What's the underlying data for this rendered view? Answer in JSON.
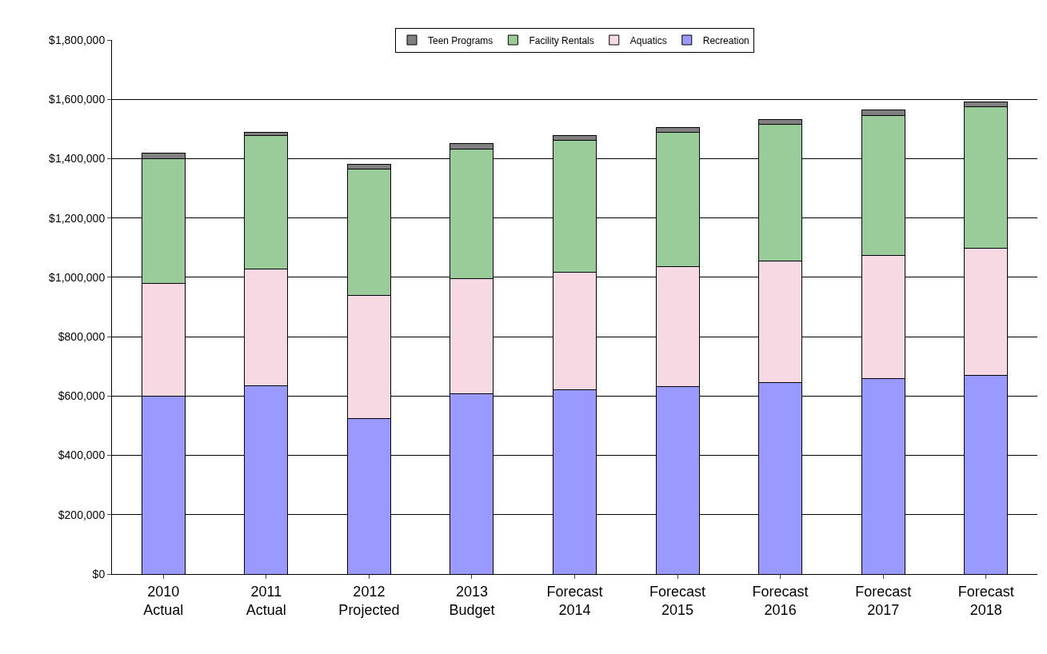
{
  "chart_data": {
    "type": "bar",
    "stacked": true,
    "categories": [
      "2010\nActual",
      "2011\nActual",
      "2012\nProjected",
      "2013\nBudget",
      "Forecast\n2014",
      "Forecast\n2015",
      "Forecast\n2016",
      "Forecast\n2017",
      "Forecast\n2018"
    ],
    "series": [
      {
        "name": "Recreation",
        "color": "#9999ff",
        "values": [
          600000,
          635000,
          525000,
          608000,
          620000,
          632000,
          645000,
          658000,
          670000
        ]
      },
      {
        "name": "Aquatics",
        "color": "#f7d9e3",
        "values": [
          380000,
          393000,
          415000,
          387000,
          398000,
          405000,
          410000,
          417000,
          428000
        ]
      },
      {
        "name": "Facility Rentals",
        "color": "#99cc99",
        "values": [
          420000,
          450000,
          425000,
          437000,
          444000,
          453000,
          460000,
          470000,
          477000
        ]
      },
      {
        "name": "Teen Programs",
        "color": "#808080",
        "values": [
          20000,
          10000,
          15000,
          18000,
          15000,
          15000,
          18000,
          20000,
          17000
        ]
      }
    ],
    "ylim": [
      0,
      1800000
    ],
    "yticks": [
      {
        "value": 0,
        "label": "$0"
      },
      {
        "value": 200000,
        "label": "$200,000"
      },
      {
        "value": 400000,
        "label": "$400,000"
      },
      {
        "value": 600000,
        "label": "$600,000"
      },
      {
        "value": 800000,
        "label": "$800,000"
      },
      {
        "value": 1000000,
        "label": "$1,000,000"
      },
      {
        "value": 1200000,
        "label": "$1,200,000"
      },
      {
        "value": 1400000,
        "label": "$1,400,000"
      },
      {
        "value": 1600000,
        "label": "$1,600,000"
      },
      {
        "value": 1800000,
        "label": "$1,800,000"
      }
    ],
    "grid": "y",
    "legend": "top"
  }
}
